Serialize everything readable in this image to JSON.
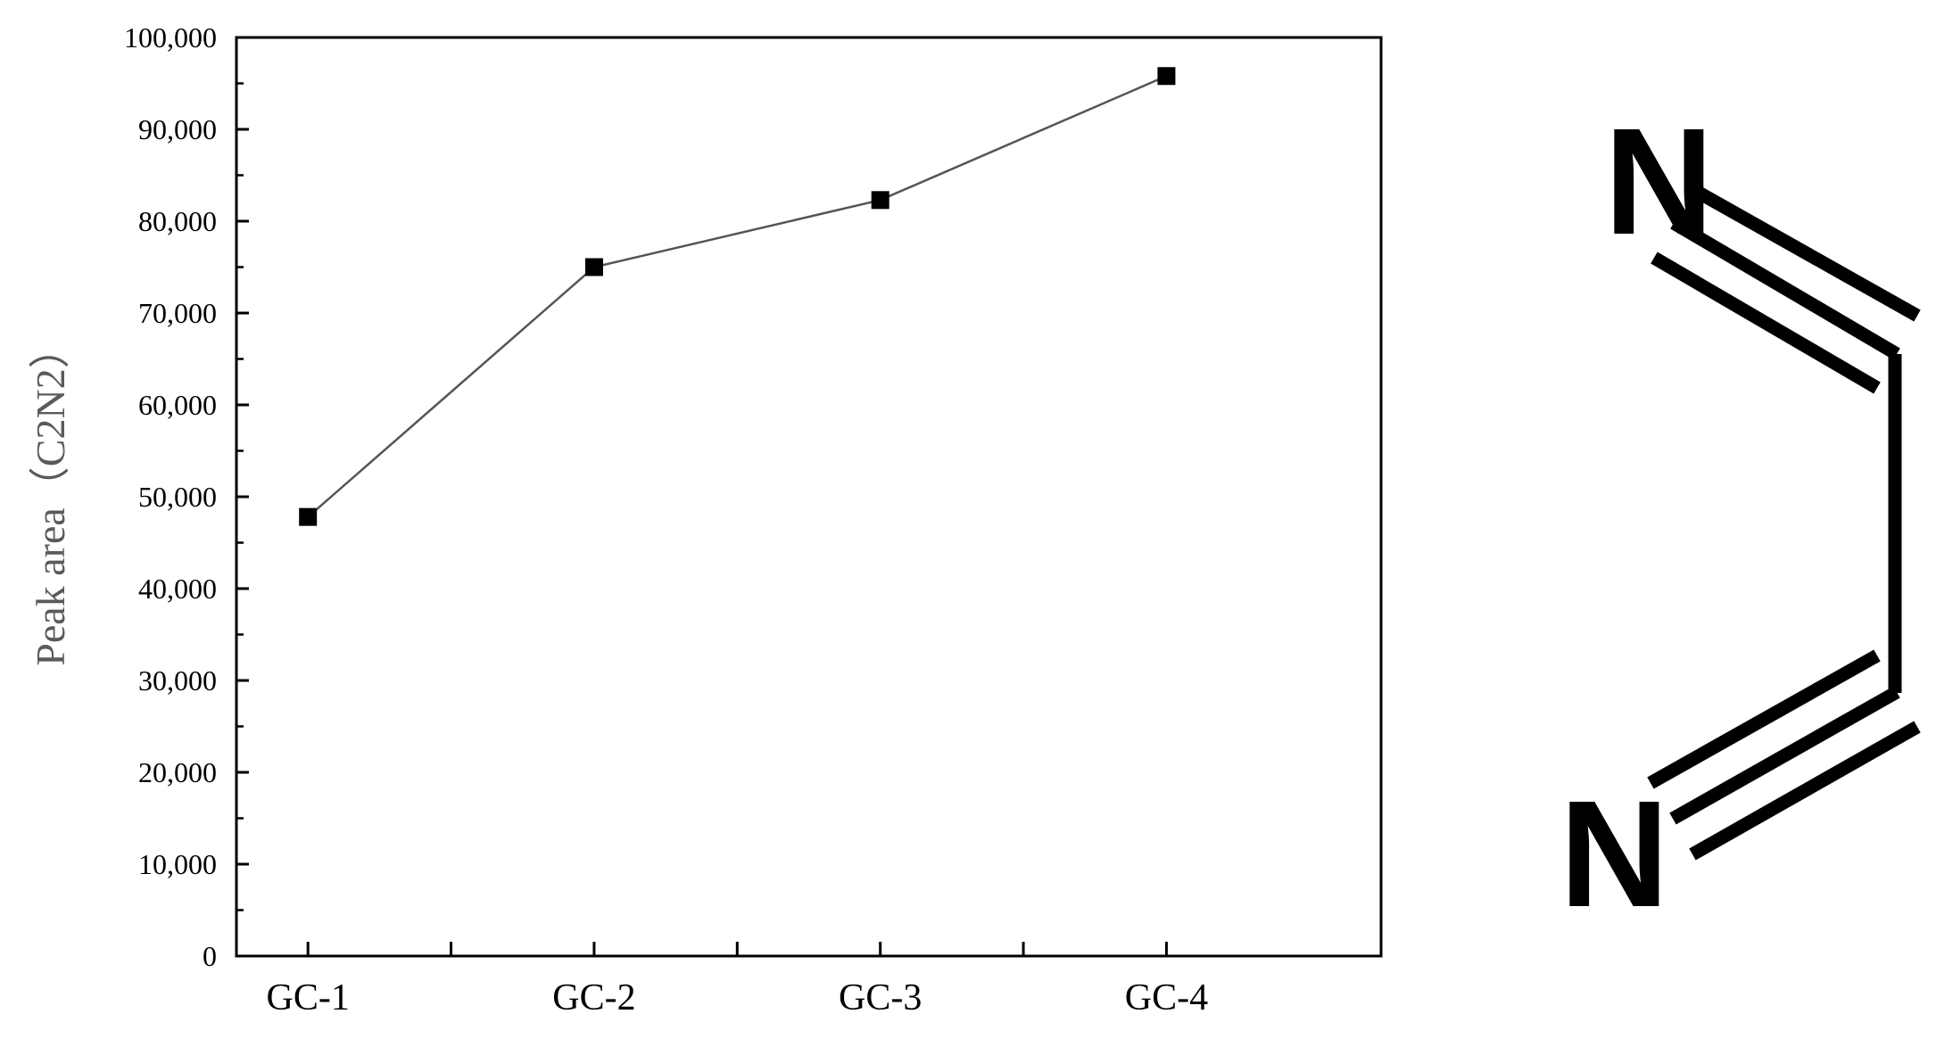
{
  "chart_data": {
    "type": "line",
    "categories": [
      "GC-1",
      "GC-2",
      "GC-3",
      "GC-4"
    ],
    "values": [
      47800,
      75000,
      82300,
      95800
    ],
    "ylabel": "Peak area（C2N2）",
    "ylim": [
      0,
      100000
    ],
    "y_ticks": [
      "0",
      "10,000",
      "20,000",
      "30,000",
      "40,000",
      "50,000",
      "60,000",
      "70,000",
      "80,000",
      "90,000",
      "100,000"
    ],
    "grid": false,
    "marker": "square",
    "line_color": "#555555",
    "marker_color": "#000000"
  },
  "molecule": {
    "name": "cyanogen",
    "atom_top": "N",
    "atom_bottom": "N"
  }
}
